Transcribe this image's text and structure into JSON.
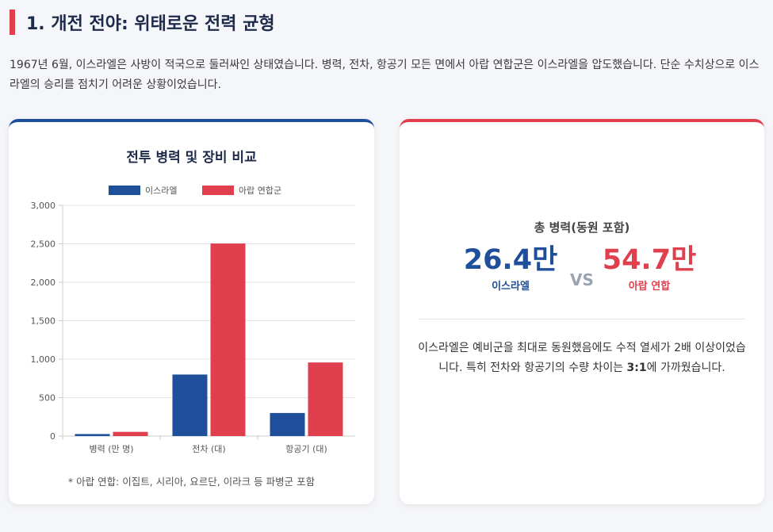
{
  "section": {
    "title": "1. 개전 전야: 위태로운 전력 균형",
    "intro": "1967년 6월, 이스라엘은 사방이 적국으로 둘러싸인 상태였습니다. 병력, 전차, 항공기 모든 면에서 아랍 연합군은 이스라엘을 압도했습니다. 단순 수치상으로 이스라엘의 승리를 점치기 어려운 상황이었습니다."
  },
  "chart_data": {
    "type": "bar",
    "title": "전투 병력 및 장비 비교",
    "categories": [
      "병력 (만 명)",
      "전차 (대)",
      "항공기 (대)"
    ],
    "series": [
      {
        "name": "이스라엘",
        "values": [
          26.4,
          800,
          300
        ],
        "color": "#1f4e9a"
      },
      {
        "name": "아랍 연합군",
        "values": [
          54.7,
          2504,
          957
        ],
        "color": "#e0404d"
      }
    ],
    "ylim": [
      0,
      3000
    ],
    "yticks": [
      0,
      500,
      1000,
      1500,
      2000,
      2500,
      3000
    ],
    "ytick_labels": [
      "0",
      "500",
      "1,000",
      "1,500",
      "2,000",
      "2,500",
      "3,000"
    ],
    "legend": "top-center",
    "grid": true,
    "note": "* 아랍 연합: 이집트, 시리아, 요르단, 이라크 등 파병군 포함"
  },
  "stats": {
    "label": "총 병력(동원 포함)",
    "israel_value": "26.4만",
    "israel_name": "이스라엘",
    "vs": "VS",
    "arab_value": "54.7만",
    "arab_name": "아랍 연합",
    "desc_before": "이스라엘은 예비군을 최대로 동원했음에도 수적 열세가 2배 이상이었습니다. 특히 전차와 항공기의 수량 차이는 ",
    "desc_bold": "3:1",
    "desc_after": "에 가까웠습니다."
  }
}
